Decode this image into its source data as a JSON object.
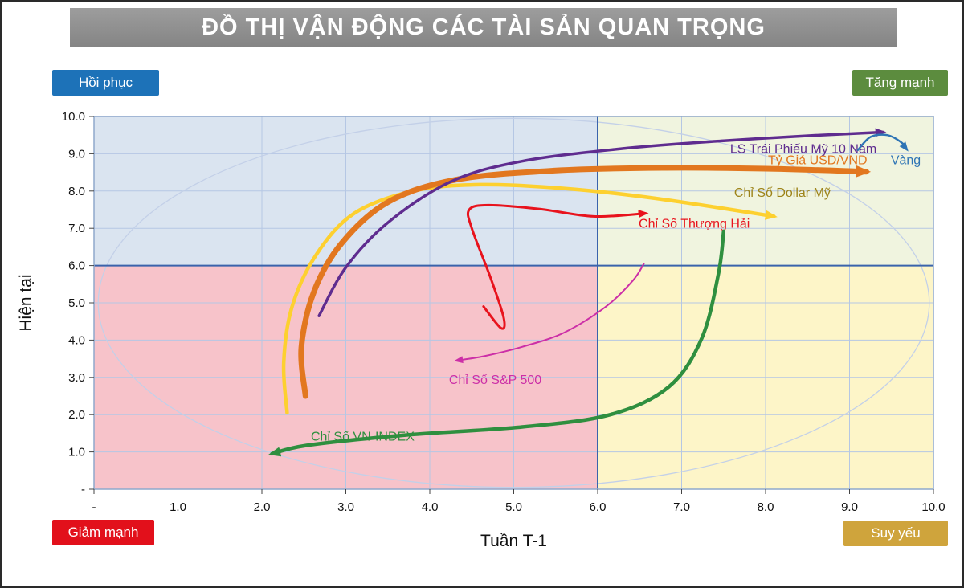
{
  "page": {
    "title": "ĐỒ THỊ VẬN ĐỘNG CÁC TÀI SẢN QUAN TRỌNG"
  },
  "quadrant_badges": {
    "top_left": {
      "label": "Hồi phục",
      "color": "#1d72b8"
    },
    "top_right": {
      "label": "Tăng mạnh",
      "color": "#5c8c3e"
    },
    "bottom_left": {
      "label": "Giảm mạnh",
      "color": "#e2101b"
    },
    "bottom_right": {
      "label": "Suy yếu",
      "color": "#cfa43c"
    }
  },
  "chart_data": {
    "type": "scatter",
    "subtype": "trajectory-quadrant",
    "title": "ĐỒ THỊ VẬN ĐỘNG CÁC TÀI SẢN QUAN TRỌNG",
    "xlabel": "Tuần T-1",
    "ylabel": "Hiện tại",
    "xlim": [
      0,
      10
    ],
    "ylim": [
      0,
      10
    ],
    "x_ticks": [
      "-",
      "1.0",
      "2.0",
      "3.0",
      "4.0",
      "5.0",
      "6.0",
      "7.0",
      "8.0",
      "9.0",
      "10.0"
    ],
    "y_ticks": [
      "-",
      "1.0",
      "2.0",
      "3.0",
      "4.0",
      "5.0",
      "6.0",
      "7.0",
      "8.0",
      "9.0",
      "10.0"
    ],
    "grid": true,
    "grid_color": "#b5c7e4",
    "border_color": "#8fa8cc",
    "split_color": "#3a63ac",
    "split_x": 6,
    "split_y": 6,
    "ellipse_color": "#c3d0e8",
    "quadrant_colors": {
      "top_left": "#dae4f0",
      "top_right": "#f0f4df",
      "bottom_left": "#f7c3ca",
      "bottom_right": "#fdf5c8"
    },
    "series": [
      {
        "id": "dollar-index",
        "name": "Chỉ Số Dollar Mỹ",
        "color": "#fdd02f",
        "label_color": "#9d8319",
        "width": 4.5,
        "points": [
          [
            2.3,
            2.05
          ],
          [
            2.26,
            3.4
          ],
          [
            2.36,
            4.9
          ],
          [
            2.65,
            6.3
          ],
          [
            3.1,
            7.4
          ],
          [
            3.8,
            8.0
          ],
          [
            4.6,
            8.17
          ],
          [
            5.6,
            8.07
          ],
          [
            6.7,
            7.8
          ],
          [
            8.1,
            7.32
          ]
        ],
        "label_pos": [
          8.2,
          7.85
        ]
      },
      {
        "id": "usd-vnd",
        "name": "Tỷ Giá USD/VND",
        "color": "#e2771f",
        "width": 7,
        "points": [
          [
            2.52,
            2.5
          ],
          [
            2.47,
            3.8
          ],
          [
            2.62,
            5.3
          ],
          [
            2.95,
            6.6
          ],
          [
            3.5,
            7.7
          ],
          [
            4.3,
            8.3
          ],
          [
            5.5,
            8.55
          ],
          [
            6.8,
            8.62
          ],
          [
            8.0,
            8.6
          ],
          [
            9.2,
            8.52
          ]
        ],
        "label_pos": [
          8.62,
          8.72
        ]
      },
      {
        "id": "us-10y-bond",
        "name": "LS Trái Phiếu Mỹ 10 Năm",
        "color": "#5f2c8f",
        "width": 3.5,
        "points": [
          [
            2.68,
            4.65
          ],
          [
            3.0,
            5.95
          ],
          [
            3.5,
            7.15
          ],
          [
            4.25,
            8.25
          ],
          [
            5.1,
            8.8
          ],
          [
            6.35,
            9.15
          ],
          [
            7.5,
            9.35
          ],
          [
            8.65,
            9.5
          ],
          [
            9.4,
            9.58
          ]
        ],
        "label_pos": [
          8.45,
          9.02
        ]
      },
      {
        "id": "shanghai",
        "name": "Chỉ Số Thượng Hải",
        "color": "#e8131d",
        "width": 3,
        "points": [
          [
            4.64,
            4.9
          ],
          [
            4.85,
            4.32
          ],
          [
            4.88,
            4.6
          ],
          [
            4.72,
            5.7
          ],
          [
            4.5,
            7.0
          ],
          [
            4.47,
            7.5
          ],
          [
            4.7,
            7.62
          ],
          [
            5.3,
            7.52
          ],
          [
            5.95,
            7.32
          ],
          [
            6.57,
            7.4
          ]
        ],
        "label_pos": [
          7.15,
          7.02
        ]
      },
      {
        "id": "sp500",
        "name": "Chỉ Số S&P 500",
        "color": "#cc2fa7",
        "width": 2,
        "points": [
          [
            6.55,
            6.05
          ],
          [
            6.42,
            5.6
          ],
          [
            6.1,
            4.9
          ],
          [
            5.6,
            4.2
          ],
          [
            5.1,
            3.82
          ],
          [
            4.65,
            3.57
          ],
          [
            4.32,
            3.45
          ]
        ],
        "label_pos": [
          4.78,
          2.82
        ]
      },
      {
        "id": "vn-index",
        "name": "Chỉ Số VN-INDEX",
        "color": "#2f8f3f",
        "width": 4.5,
        "points": [
          [
            7.5,
            6.92
          ],
          [
            7.44,
            5.8
          ],
          [
            7.24,
            4.05
          ],
          [
            6.85,
            2.75
          ],
          [
            6.15,
            2.0
          ],
          [
            5.1,
            1.67
          ],
          [
            3.7,
            1.45
          ],
          [
            2.55,
            1.18
          ],
          [
            2.12,
            0.95
          ]
        ],
        "label_pos": [
          3.2,
          1.3
        ]
      },
      {
        "id": "gold",
        "name": "Vàng",
        "color": "#2e74b5",
        "width": 2.5,
        "points": [
          [
            9.1,
            9.1
          ],
          [
            9.25,
            9.45
          ],
          [
            9.45,
            9.5
          ],
          [
            9.62,
            9.3
          ],
          [
            9.68,
            9.12
          ]
        ],
        "label_pos": [
          9.67,
          8.72
        ]
      }
    ]
  }
}
